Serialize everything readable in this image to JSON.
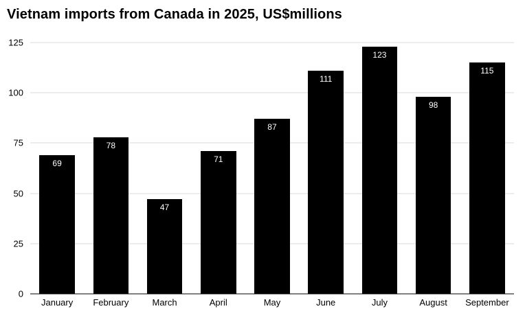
{
  "chart_data": {
    "type": "bar",
    "title": "Vietnam imports from Canada in 2025, US$millions",
    "categories": [
      "January",
      "February",
      "March",
      "April",
      "May",
      "June",
      "July",
      "August",
      "September"
    ],
    "values": [
      69,
      78,
      47,
      71,
      87,
      111,
      123,
      98,
      115
    ],
    "xlabel": "",
    "ylabel": "",
    "ylim": [
      0,
      125
    ],
    "yticks": [
      0,
      25,
      50,
      75,
      100,
      125
    ],
    "grid": "horizontal",
    "legend_position": "none",
    "bar_color": "#000000",
    "value_label_color": "#ffffff",
    "gridline_color": "#d9d9d9",
    "baseline_color": "#000000",
    "background_color": "#ffffff"
  }
}
